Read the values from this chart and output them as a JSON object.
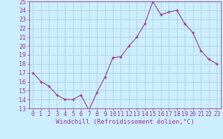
{
  "x": [
    0,
    1,
    2,
    3,
    4,
    5,
    6,
    7,
    8,
    9,
    10,
    11,
    12,
    13,
    14,
    15,
    16,
    17,
    18,
    19,
    20,
    21,
    22,
    23
  ],
  "y": [
    17,
    16,
    15.5,
    14.5,
    14,
    14,
    14.5,
    12.8,
    14.8,
    16.5,
    18.7,
    18.8,
    20,
    21,
    22.5,
    25,
    23.5,
    23.8,
    24,
    22.5,
    21.5,
    19.5,
    18.5,
    18
  ],
  "xlabel": "Windchill (Refroidissement éolien,°C)",
  "ylim": [
    13,
    25
  ],
  "xlim": [
    -0.5,
    23.5
  ],
  "yticks": [
    13,
    14,
    15,
    16,
    17,
    18,
    19,
    20,
    21,
    22,
    23,
    24,
    25
  ],
  "xticks": [
    0,
    1,
    2,
    3,
    4,
    5,
    6,
    7,
    8,
    9,
    10,
    11,
    12,
    13,
    14,
    15,
    16,
    17,
    18,
    19,
    20,
    21,
    22,
    23
  ],
  "line_color": "#993399",
  "marker": "+",
  "bg_color": "#cceeff",
  "grid_color": "#aacccc",
  "axis_color": "#993399",
  "tick_label_color": "#993399",
  "xlabel_color": "#993399",
  "xlabel_fontsize": 6.5,
  "tick_fontsize": 6.0
}
